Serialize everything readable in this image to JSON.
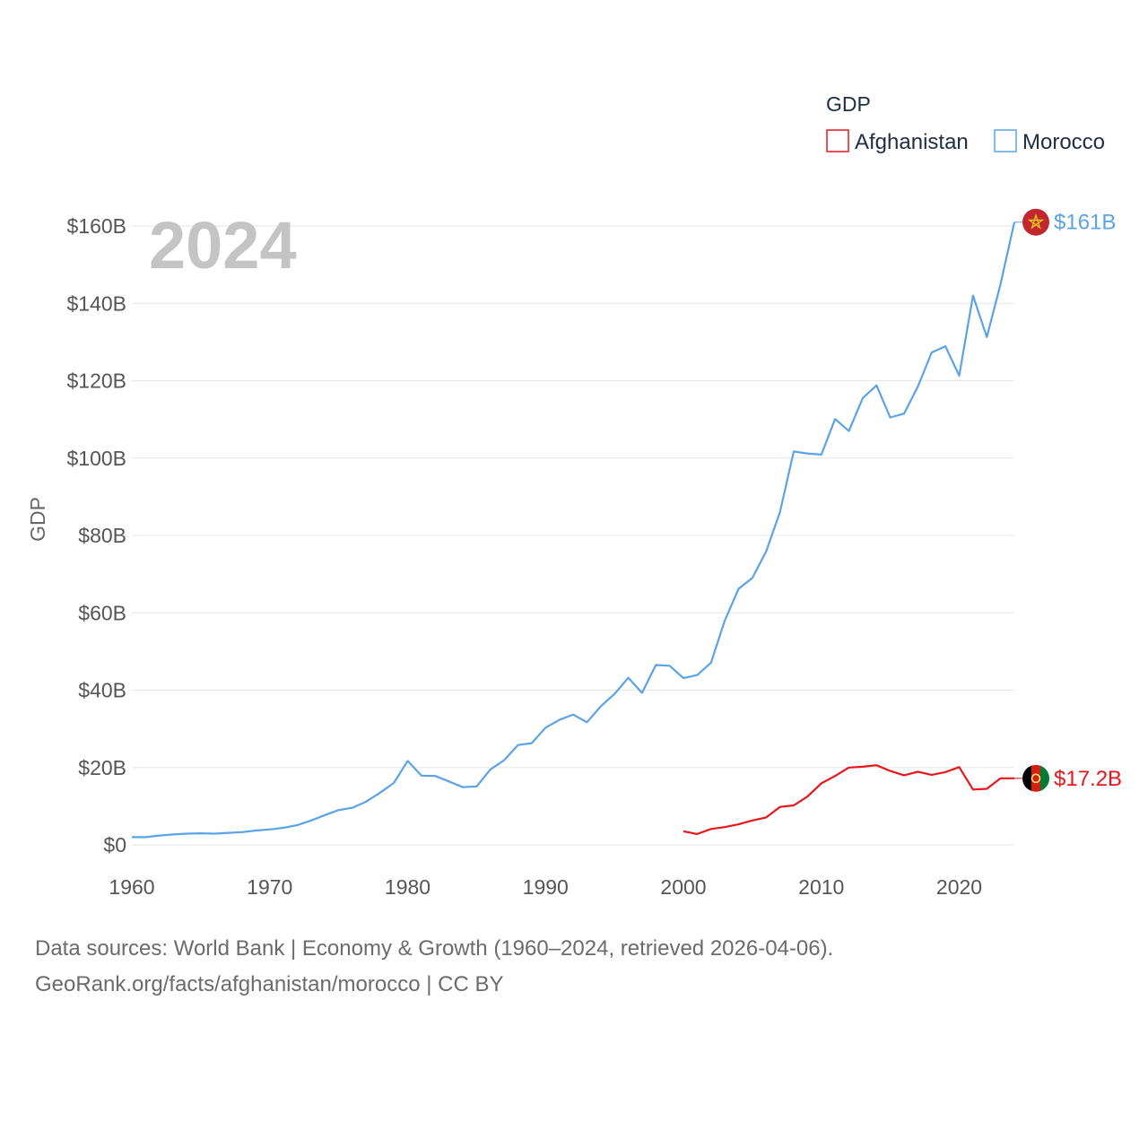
{
  "chart_data": {
    "type": "line",
    "legend": {
      "title": "GDP",
      "position": "top-right"
    },
    "year_label": "2024",
    "ylabel": "GDP",
    "ylim": [
      0,
      160
    ],
    "xlim": [
      1960,
      2024
    ],
    "yticks": [
      {
        "value": 0,
        "label": "$0"
      },
      {
        "value": 20,
        "label": "$20B"
      },
      {
        "value": 40,
        "label": "$40B"
      },
      {
        "value": 60,
        "label": "$60B"
      },
      {
        "value": 80,
        "label": "$80B"
      },
      {
        "value": 100,
        "label": "$100B"
      },
      {
        "value": 120,
        "label": "$120B"
      },
      {
        "value": 140,
        "label": "$140B"
      },
      {
        "value": 160,
        "label": "$160B"
      }
    ],
    "xticks": [
      1960,
      1970,
      1980,
      1990,
      2000,
      2010,
      2020
    ],
    "series": [
      {
        "name": "Afghanistan",
        "color": "#e8161b",
        "flag": "afghanistan-flag-icon",
        "end_label": "$17.2B",
        "x": [
          2000,
          2001,
          2002,
          2003,
          2004,
          2005,
          2006,
          2007,
          2008,
          2009,
          2010,
          2011,
          2012,
          2013,
          2014,
          2015,
          2016,
          2017,
          2018,
          2019,
          2020,
          2021,
          2022,
          2023,
          2024
        ],
        "values": [
          3.5,
          2.8,
          4.1,
          4.6,
          5.3,
          6.3,
          7.1,
          9.8,
          10.2,
          12.5,
          15.9,
          17.8,
          20.0,
          20.2,
          20.6,
          19.1,
          18.0,
          18.9,
          18.1,
          18.8,
          20.1,
          14.3,
          14.5,
          17.2,
          17.2
        ]
      },
      {
        "name": "Morocco",
        "color": "#5ba3e6",
        "flag": "morocco-flag-icon",
        "end_label": "$161B",
        "x": [
          1960,
          1961,
          1962,
          1963,
          1964,
          1965,
          1966,
          1967,
          1968,
          1969,
          1970,
          1971,
          1972,
          1973,
          1974,
          1975,
          1976,
          1977,
          1978,
          1979,
          1980,
          1981,
          1982,
          1983,
          1984,
          1985,
          1986,
          1987,
          1988,
          1989,
          1990,
          1991,
          1992,
          1993,
          1994,
          1995,
          1996,
          1997,
          1998,
          1999,
          2000,
          2001,
          2002,
          2003,
          2004,
          2005,
          2006,
          2007,
          2008,
          2009,
          2010,
          2011,
          2012,
          2013,
          2014,
          2015,
          2016,
          2017,
          2018,
          2019,
          2020,
          2021,
          2022,
          2023,
          2024
        ],
        "values": [
          2.0,
          2.0,
          2.4,
          2.7,
          2.9,
          3.0,
          2.9,
          3.1,
          3.3,
          3.7,
          4.0,
          4.4,
          5.1,
          6.3,
          7.7,
          9.0,
          9.6,
          11.2,
          13.5,
          16.0,
          21.7,
          17.9,
          17.8,
          16.4,
          14.9,
          15.1,
          19.5,
          21.9,
          25.8,
          26.3,
          30.3,
          32.3,
          33.7,
          31.7,
          35.8,
          39.0,
          43.2,
          39.3,
          46.5,
          46.3,
          43.1,
          43.9,
          47.1,
          58.0,
          66.2,
          69.0,
          75.9,
          86.0,
          101.7,
          101.2,
          100.9,
          110.1,
          107.0,
          115.5,
          118.8,
          110.5,
          111.5,
          118.5,
          127.3,
          128.9,
          121.3,
          142.0,
          131.3,
          145.0,
          161.0
        ]
      }
    ]
  },
  "source": {
    "line1": "Data sources: World Bank | Economy & Growth (1960–2024, retrieved 2026-04-06).",
    "line2": "GeoRank.org/facts/afghanistan/morocco | CC BY"
  }
}
